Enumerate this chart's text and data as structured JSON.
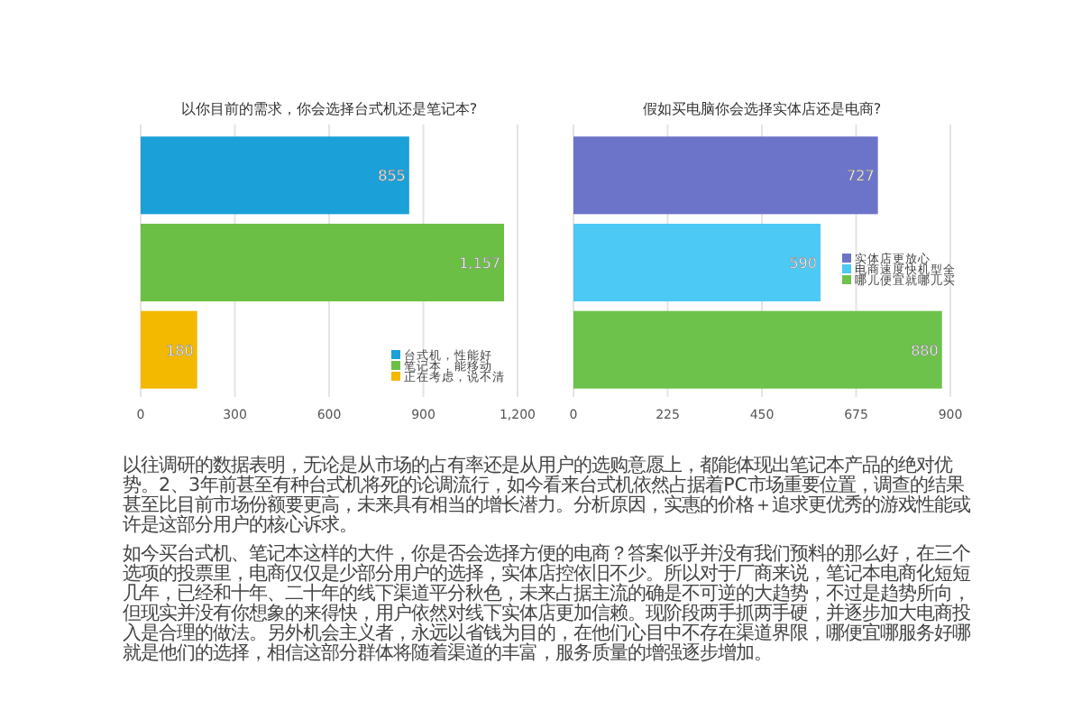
{
  "chart_data": [
    {
      "type": "bar",
      "orientation": "horizontal",
      "title": "以你目前的需求，你会选择台式机还是笔记本?",
      "categories": [
        null,
        null,
        null
      ],
      "series": [
        {
          "name": "台式机，性能好",
          "color": "#1ba0d8",
          "values": [
            855,
            null,
            null
          ],
          "value_labels": [
            "855",
            null,
            null
          ]
        },
        {
          "name": "笔记本，能移动",
          "color": "#6cbf45",
          "values": [
            null,
            1157,
            null
          ],
          "value_labels": [
            null,
            "1,157",
            null
          ]
        },
        {
          "name": "正在考虑，说不清",
          "color": "#f3b900",
          "values": [
            null,
            null,
            180
          ],
          "value_labels": [
            null,
            null,
            "180"
          ]
        }
      ],
      "xlim": [
        0,
        1200
      ],
      "xticks": [
        0,
        300,
        600,
        900,
        {
          "value": 1200,
          "label": "1,200"
        }
      ],
      "grid": "x",
      "legend": "bottom right"
    },
    {
      "type": "bar",
      "orientation": "horizontal",
      "title": "假如买电脑你会选择实体店还是电商?",
      "categories": [
        null,
        null,
        null
      ],
      "series": [
        {
          "name": "实体店更放心",
          "color": "#6c74c9",
          "values": [
            727,
            null,
            null
          ],
          "value_labels": [
            "727",
            null,
            null
          ]
        },
        {
          "name": "电商速度快机型全",
          "color": "#4dc9f6",
          "values": [
            null,
            590,
            null
          ],
          "value_labels": [
            null,
            "590",
            null
          ]
        },
        {
          "name": "哪儿便宜就哪儿买",
          "color": "#6cc24a",
          "values": [
            null,
            null,
            880
          ],
          "value_labels": [
            null,
            null,
            "880"
          ]
        }
      ],
      "xlim": [
        0,
        900
      ],
      "xticks": [
        0,
        225,
        450,
        675,
        900
      ],
      "grid": "x",
      "legend": "right"
    },
    {
      "type": "other",
      "annotations": [
        "以往调研的数据表明，无论是从市场的占有率还是从用户的选购意愿上，都能体现出笔记本产品的绝对优势。2、3年前甚至有种台式机将死的论调流行，如今看来台式机依然占据着PC市场重要位置，调查的结果甚至比目前市场份额要更高，未来具有相当的增长潜力。分析原因，实惠的价格＋追求更优秀的游戏性能或许是这部分用户的核心诉求。",
        "如今买台式机、笔记本这样的大件，你是否会选择方便的电商？答案似乎并没有我们预料的那么好，在三个选项的投票里，电商仅仅是少部分用户的选择，实体店控依旧不少。所以对于厂商来说，笔记本电商化短短几年，已经和十年、二十年的线下渠道平分秋色，未来占据主流的确是不可逆的大趋势，不过是趋势所向，但现实并没有你想象的来得快，用户依然对线下实体店更加信赖。现阶段两手抓两手硬，并逐步加大电商投入是合理的做法。另外机会主义者，永远以省钱为目的，在他们心目中不存在渠道界限，哪便宜哪服务好哪就是他们的选择，相信这部分群体将随着渠道的丰富，服务质量的增强逐步增加。"
      ]
    }
  ]
}
